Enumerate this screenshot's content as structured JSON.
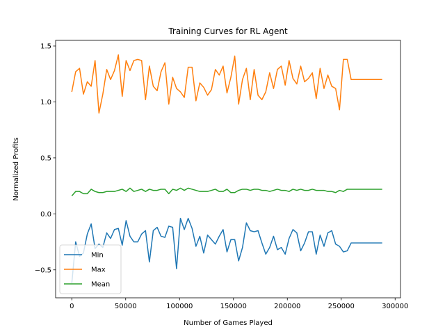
{
  "chart_data": {
    "type": "line",
    "title": "Training Curves for RL Agent",
    "xlabel": "Number of Games Played",
    "ylabel": "Normalized Profits",
    "xlim": [
      -15000,
      305000
    ],
    "ylim": [
      -0.75,
      1.55
    ],
    "xticks": [
      0,
      50000,
      100000,
      150000,
      200000,
      250000,
      300000
    ],
    "yticks": [
      -0.5,
      0.0,
      0.5,
      1.0,
      1.5
    ],
    "xtick_labels": [
      "0",
      "50000",
      "100000",
      "150000",
      "200000",
      "250000",
      "300000"
    ],
    "ytick_labels": [
      "−0.5",
      "0.0",
      "0.5",
      "1.0",
      "1.5"
    ],
    "grid": false,
    "legend_position": "lower-left",
    "x": [
      0,
      3600,
      7200,
      10800,
      14400,
      18000,
      21600,
      25200,
      28800,
      32400,
      36000,
      39600,
      43200,
      46800,
      50400,
      54000,
      57600,
      61200,
      64800,
      68400,
      72000,
      75600,
      79200,
      82800,
      86400,
      90000,
      93600,
      97200,
      100800,
      104400,
      108000,
      111600,
      115200,
      118800,
      122400,
      126000,
      129600,
      133200,
      136800,
      140400,
      144000,
      147600,
      151200,
      154800,
      158400,
      162000,
      165600,
      169200,
      172800,
      176400,
      180000,
      183600,
      187200,
      190800,
      194400,
      198000,
      201600,
      205200,
      208800,
      212400,
      216000,
      219600,
      223200,
      226800,
      230400,
      234000,
      237600,
      241200,
      244800,
      248400,
      252000,
      255600,
      259200,
      262800,
      266400,
      270000,
      273600,
      277200,
      280800,
      284400,
      288000
    ],
    "series": [
      {
        "name": "Min",
        "color": "#1f77b4",
        "values": [
          -0.62,
          -0.25,
          -0.38,
          -0.35,
          -0.18,
          -0.09,
          -0.31,
          -0.27,
          -0.3,
          -0.17,
          -0.22,
          -0.14,
          -0.13,
          -0.28,
          -0.06,
          -0.2,
          -0.25,
          -0.25,
          -0.18,
          -0.15,
          -0.43,
          -0.15,
          -0.12,
          -0.2,
          -0.21,
          -0.11,
          -0.12,
          -0.49,
          -0.04,
          -0.14,
          -0.04,
          -0.13,
          -0.29,
          -0.2,
          -0.35,
          -0.19,
          -0.23,
          -0.27,
          -0.2,
          -0.14,
          -0.34,
          -0.23,
          -0.23,
          -0.42,
          -0.3,
          -0.08,
          -0.15,
          -0.16,
          -0.15,
          -0.26,
          -0.36,
          -0.3,
          -0.2,
          -0.32,
          -0.3,
          -0.36,
          -0.22,
          -0.14,
          -0.17,
          -0.33,
          -0.26,
          -0.16,
          -0.16,
          -0.36,
          -0.19,
          -0.29,
          -0.17,
          -0.15,
          -0.27,
          -0.29,
          -0.34,
          -0.33,
          -0.26,
          -0.26,
          -0.26,
          -0.26,
          -0.26,
          -0.26,
          -0.26,
          -0.26,
          -0.26
        ]
      },
      {
        "name": "Max",
        "color": "#ff7f0e",
        "values": [
          1.09,
          1.27,
          1.3,
          1.07,
          1.18,
          1.14,
          1.37,
          0.9,
          1.07,
          1.29,
          1.2,
          1.28,
          1.42,
          1.05,
          1.37,
          1.28,
          1.37,
          1.38,
          1.37,
          1.02,
          1.32,
          1.14,
          1.1,
          1.27,
          1.35,
          0.98,
          1.22,
          1.12,
          1.09,
          1.04,
          1.31,
          1.31,
          1.01,
          1.17,
          1.13,
          1.06,
          1.11,
          1.29,
          1.24,
          1.32,
          1.08,
          1.22,
          1.41,
          0.98,
          1.2,
          1.3,
          1.02,
          1.29,
          1.06,
          1.02,
          1.09,
          1.26,
          1.12,
          1.29,
          1.32,
          1.15,
          1.37,
          1.21,
          1.16,
          1.32,
          1.18,
          1.21,
          1.26,
          1.03,
          1.3,
          1.12,
          1.24,
          1.14,
          1.12,
          0.93,
          1.38,
          1.38,
          1.2,
          1.2,
          1.2,
          1.2,
          1.2,
          1.2,
          1.2,
          1.2,
          1.2
        ]
      },
      {
        "name": "Mean",
        "color": "#2ca02c",
        "values": [
          0.16,
          0.2,
          0.2,
          0.18,
          0.18,
          0.22,
          0.2,
          0.19,
          0.19,
          0.2,
          0.2,
          0.2,
          0.21,
          0.22,
          0.2,
          0.23,
          0.2,
          0.21,
          0.22,
          0.2,
          0.22,
          0.21,
          0.21,
          0.22,
          0.22,
          0.18,
          0.22,
          0.21,
          0.23,
          0.21,
          0.23,
          0.22,
          0.21,
          0.2,
          0.2,
          0.2,
          0.21,
          0.22,
          0.2,
          0.2,
          0.22,
          0.19,
          0.19,
          0.21,
          0.22,
          0.22,
          0.21,
          0.22,
          0.22,
          0.21,
          0.21,
          0.2,
          0.21,
          0.22,
          0.21,
          0.21,
          0.2,
          0.22,
          0.21,
          0.22,
          0.21,
          0.21,
          0.22,
          0.21,
          0.21,
          0.21,
          0.2,
          0.2,
          0.19,
          0.21,
          0.2,
          0.22,
          0.22,
          0.22,
          0.22,
          0.22,
          0.22,
          0.22,
          0.22,
          0.22,
          0.22
        ]
      }
    ]
  }
}
